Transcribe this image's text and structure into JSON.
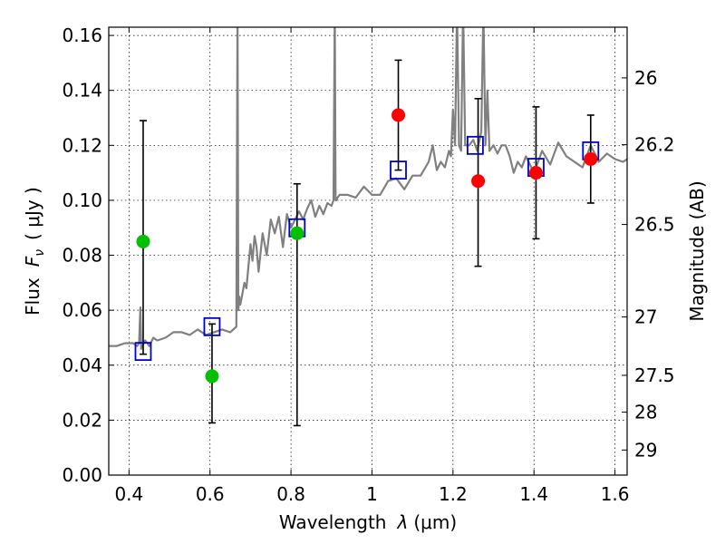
{
  "chart_data": {
    "type": "scatter",
    "xlabel_text": "Wavelength",
    "xlabel_symbol": "λ",
    "xlabel_unit": "(μm)",
    "ylabel_text": "Flux",
    "ylabel_symbol": "F",
    "ylabel_sub": "ν",
    "ylabel_unit": "( μJy )",
    "y2label": "Magnitude (AB)",
    "xlim": [
      0.35,
      1.63
    ],
    "ylim": [
      0.0,
      0.163
    ],
    "grid": true,
    "x_ticks": [
      0.4,
      0.6,
      0.8,
      1.0,
      1.2,
      1.4,
      1.6
    ],
    "x_tick_labels": [
      "0.4",
      "0.6",
      "0.8",
      "1",
      "1.2",
      "1.4",
      "1.6"
    ],
    "y_ticks": [
      0.0,
      0.02,
      0.04,
      0.06,
      0.08,
      0.1,
      0.12,
      0.14,
      0.16
    ],
    "y_tick_labels": [
      "0.00",
      "0.02",
      "0.04",
      "0.06",
      "0.08",
      "0.10",
      "0.12",
      "0.14",
      "0.16"
    ],
    "y2_ticks": [
      26,
      26.2,
      26.5,
      27,
      27.5,
      28,
      29
    ],
    "y2_tick_labels": [
      "26",
      "26.2",
      "26.5",
      "27",
      "27.5",
      "28",
      "29"
    ],
    "model_spectrum": {
      "color": "#808080",
      "x": [
        0.35,
        0.37,
        0.39,
        0.41,
        0.42,
        0.425,
        0.428,
        0.43,
        0.44,
        0.45,
        0.46,
        0.47,
        0.49,
        0.51,
        0.53,
        0.55,
        0.57,
        0.59,
        0.61,
        0.63,
        0.65,
        0.665,
        0.668,
        0.67,
        0.672,
        0.675,
        0.685,
        0.69,
        0.7,
        0.705,
        0.71,
        0.715,
        0.72,
        0.73,
        0.74,
        0.75,
        0.76,
        0.77,
        0.78,
        0.79,
        0.8,
        0.81,
        0.82,
        0.83,
        0.84,
        0.85,
        0.86,
        0.87,
        0.88,
        0.89,
        0.9,
        0.905,
        0.908,
        0.91,
        0.912,
        0.915,
        0.92,
        0.94,
        0.96,
        0.98,
        1.0,
        1.02,
        1.04,
        1.06,
        1.08,
        1.1,
        1.12,
        1.14,
        1.15,
        1.16,
        1.17,
        1.18,
        1.19,
        1.195,
        1.2,
        1.205,
        1.21,
        1.215,
        1.22,
        1.225,
        1.23,
        1.24,
        1.25,
        1.26,
        1.27,
        1.275,
        1.28,
        1.285,
        1.29,
        1.3,
        1.31,
        1.32,
        1.33,
        1.34,
        1.35,
        1.36,
        1.37,
        1.38,
        1.39,
        1.4,
        1.42,
        1.44,
        1.46,
        1.48,
        1.5,
        1.52,
        1.54,
        1.56,
        1.58,
        1.6,
        1.62,
        1.63
      ],
      "y": [
        0.047,
        0.047,
        0.048,
        0.048,
        0.047,
        0.048,
        0.061,
        0.046,
        0.049,
        0.047,
        0.05,
        0.049,
        0.05,
        0.052,
        0.052,
        0.051,
        0.053,
        0.051,
        0.052,
        0.053,
        0.052,
        0.054,
        0.17,
        0.06,
        0.065,
        0.062,
        0.07,
        0.068,
        0.084,
        0.078,
        0.087,
        0.083,
        0.074,
        0.088,
        0.08,
        0.093,
        0.088,
        0.094,
        0.083,
        0.095,
        0.09,
        0.093,
        0.096,
        0.093,
        0.097,
        0.1,
        0.094,
        0.098,
        0.095,
        0.099,
        0.098,
        0.1,
        0.17,
        0.1,
        0.1,
        0.101,
        0.102,
        0.102,
        0.101,
        0.105,
        0.102,
        0.102,
        0.107,
        0.108,
        0.104,
        0.109,
        0.109,
        0.114,
        0.12,
        0.111,
        0.114,
        0.112,
        0.118,
        0.116,
        0.133,
        0.12,
        0.17,
        0.12,
        0.118,
        0.17,
        0.12,
        0.12,
        0.122,
        0.118,
        0.125,
        0.17,
        0.12,
        0.14,
        0.118,
        0.12,
        0.117,
        0.12,
        0.12,
        0.116,
        0.11,
        0.114,
        0.112,
        0.116,
        0.113,
        0.11,
        0.118,
        0.113,
        0.121,
        0.116,
        0.114,
        0.112,
        0.12,
        0.114,
        0.117,
        0.115,
        0.114,
        0.115
      ]
    },
    "series": [
      {
        "marker": "square-open",
        "color": "#0000cc",
        "x": [
          0.435,
          0.605,
          0.815,
          1.065,
          1.255,
          1.405,
          1.54
        ],
        "y": [
          0.045,
          0.054,
          0.09,
          0.111,
          0.12,
          0.112,
          0.118
        ]
      },
      {
        "marker": "circle",
        "color": "#00c000",
        "x": [
          0.435,
          0.605,
          0.815
        ],
        "y": [
          0.085,
          0.036,
          0.088
        ],
        "yerr_low": [
          0.044,
          0.019,
          0.018
        ],
        "yerr_high": [
          0.129,
          0.055,
          0.106
        ]
      },
      {
        "marker": "circle",
        "color": "#ff0000",
        "x": [
          1.065,
          1.262,
          1.405,
          1.54
        ],
        "y": [
          0.131,
          0.107,
          0.11,
          0.115
        ],
        "yerr_low": [
          0.111,
          0.076,
          0.086,
          0.099
        ],
        "yerr_high": [
          0.151,
          0.137,
          0.134,
          0.131
        ]
      }
    ]
  }
}
